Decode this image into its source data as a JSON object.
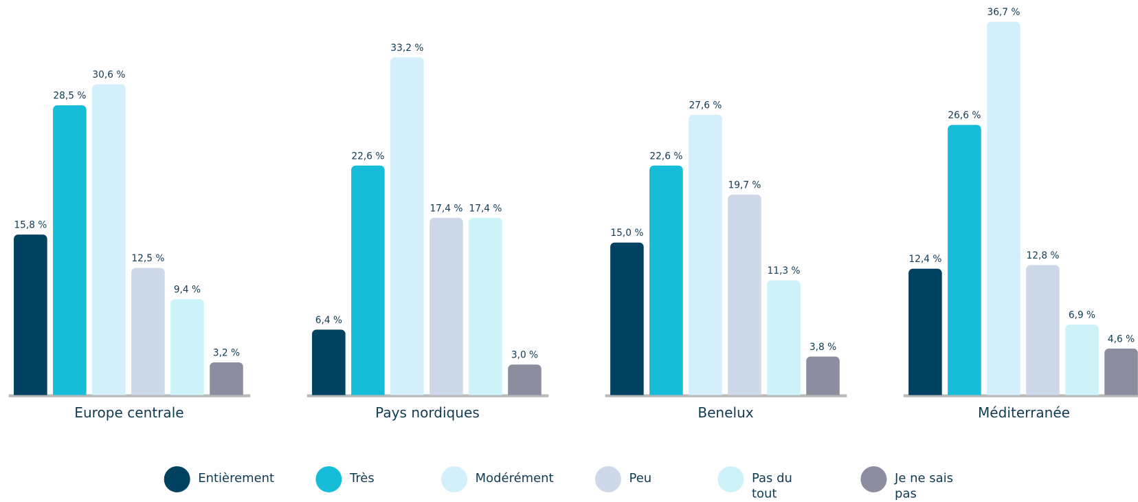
{
  "chart_data": {
    "type": "bar",
    "categories": [
      "Europe centrale",
      "Pays nordiques",
      "Benelux",
      "Méditerranée"
    ],
    "series": [
      {
        "name": "Entièrement",
        "color": "#00425f",
        "values": [
          15.8,
          6.4,
          15.0,
          12.4
        ],
        "value_labels": [
          "15,8 %",
          "6,4 %",
          "15,0 %",
          "12,4 %"
        ]
      },
      {
        "name": "Très",
        "color": "#16bcd8",
        "values": [
          28.5,
          22.6,
          22.6,
          26.6
        ],
        "value_labels": [
          "28,5 %",
          "22,6 %",
          "22,6 %",
          "26,6 %"
        ]
      },
      {
        "name": "Modérément",
        "color": "#d4effc",
        "values": [
          30.6,
          33.2,
          27.6,
          36.7
        ],
        "value_labels": [
          "30,6 %",
          "33,2 %",
          "27,6 %",
          "36,7 %"
        ]
      },
      {
        "name": "Peu",
        "color": "#cdd8e8",
        "values": [
          12.5,
          17.4,
          19.7,
          12.8
        ],
        "value_labels": [
          "12,5 %",
          "17,4 %",
          "19,7 %",
          "12,8 %"
        ]
      },
      {
        "name": "Pas du tout",
        "color": "#cdf3f9",
        "values": [
          9.4,
          17.4,
          11.3,
          6.9
        ],
        "value_labels": [
          "9,4 %",
          "17,4 %",
          "11,3 %",
          "6,9 %"
        ]
      },
      {
        "name": "Je ne sais pas",
        "color": "#8c8e9f",
        "values": [
          3.2,
          3.0,
          3.8,
          4.6
        ],
        "value_labels": [
          "3,2 %",
          "3,0 %",
          "3,8 %",
          "4,6 %"
        ]
      }
    ]
  }
}
